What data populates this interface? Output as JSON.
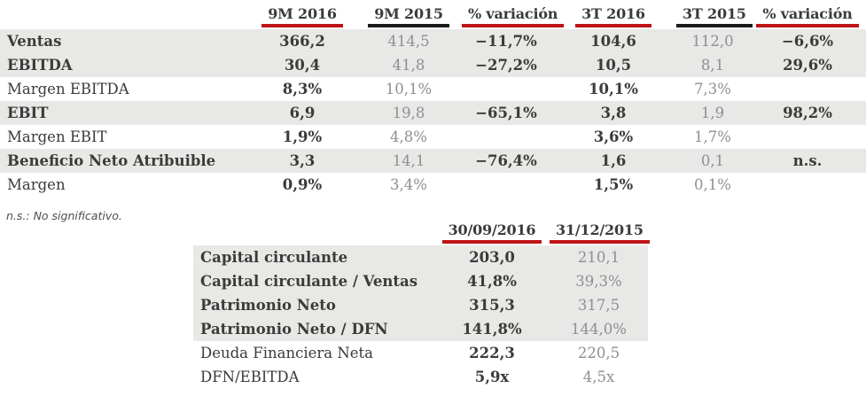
{
  "colors": {
    "accent_red": "#bf1417",
    "underline_black": "#1b1b1b",
    "text_dark": "#3b3b39",
    "text_gray": "#8f8f8f",
    "row_shade": "#e8e8e7"
  },
  "summary_table": {
    "columns": [
      {
        "label": "9M 2016",
        "underline": "red"
      },
      {
        "label": "9M 2015",
        "underline": "black"
      },
      {
        "label": "% variación",
        "underline": "red"
      },
      {
        "label": "3T 2016",
        "underline": "red"
      },
      {
        "label": "3T 2015",
        "underline": "black"
      },
      {
        "label": "% variación",
        "underline": "red"
      }
    ],
    "rows": [
      {
        "label": "Ventas",
        "bold": true,
        "shaded": true,
        "values": [
          "366,2",
          "414,5",
          "−11,7%",
          "104,6",
          "112,0",
          "−6,6%"
        ]
      },
      {
        "label": "EBITDA",
        "bold": true,
        "shaded": true,
        "values": [
          "30,4",
          "41,8",
          "−27,2%",
          "10,5",
          "8,1",
          "29,6%"
        ]
      },
      {
        "label": "Margen EBITDA",
        "bold": false,
        "shaded": false,
        "values": [
          "8,3%",
          "10,1%",
          "",
          "10,1%",
          "7,3%",
          ""
        ]
      },
      {
        "label": "EBIT",
        "bold": true,
        "shaded": true,
        "values": [
          "6,9",
          "19,8",
          "−65,1%",
          "3,8",
          "1,9",
          "98,2%"
        ]
      },
      {
        "label": "Margen EBIT",
        "bold": false,
        "shaded": false,
        "values": [
          "1,9%",
          "4,8%",
          "",
          "3,6%",
          "1,7%",
          ""
        ]
      },
      {
        "label": "Beneficio Neto Atribuible",
        "bold": true,
        "shaded": true,
        "values": [
          "3,3",
          "14,1",
          "−76,4%",
          "1,6",
          "0,1",
          "n.s."
        ]
      },
      {
        "label": "Margen",
        "bold": false,
        "shaded": false,
        "values": [
          "0,9%",
          "3,4%",
          "",
          "1,5%",
          "0,1%",
          ""
        ]
      }
    ]
  },
  "footnote": "n.s.: No significativo.",
  "balance_table": {
    "columns": [
      {
        "label": "30/09/2016",
        "underline": "red"
      },
      {
        "label": "31/12/2015",
        "underline": "red"
      }
    ],
    "rows": [
      {
        "label": "Capital circulante",
        "bold": true,
        "shaded": true,
        "values": [
          "203,0",
          "210,1"
        ]
      },
      {
        "label": "Capital circulante / Ventas",
        "bold": true,
        "shaded": true,
        "values": [
          "41,8%",
          "39,3%"
        ]
      },
      {
        "label": "Patrimonio Neto",
        "bold": true,
        "shaded": true,
        "values": [
          "315,3",
          "317,5"
        ]
      },
      {
        "label": "Patrimonio Neto / DFN",
        "bold": true,
        "shaded": true,
        "values": [
          "141,8%",
          "144,0%"
        ]
      },
      {
        "label": "Deuda Financiera Neta",
        "bold": false,
        "shaded": false,
        "values": [
          "222,3",
          "220,5"
        ]
      },
      {
        "label": "DFN/EBITDA",
        "bold": false,
        "shaded": false,
        "values": [
          "5,9x",
          "4,5x"
        ]
      }
    ]
  }
}
